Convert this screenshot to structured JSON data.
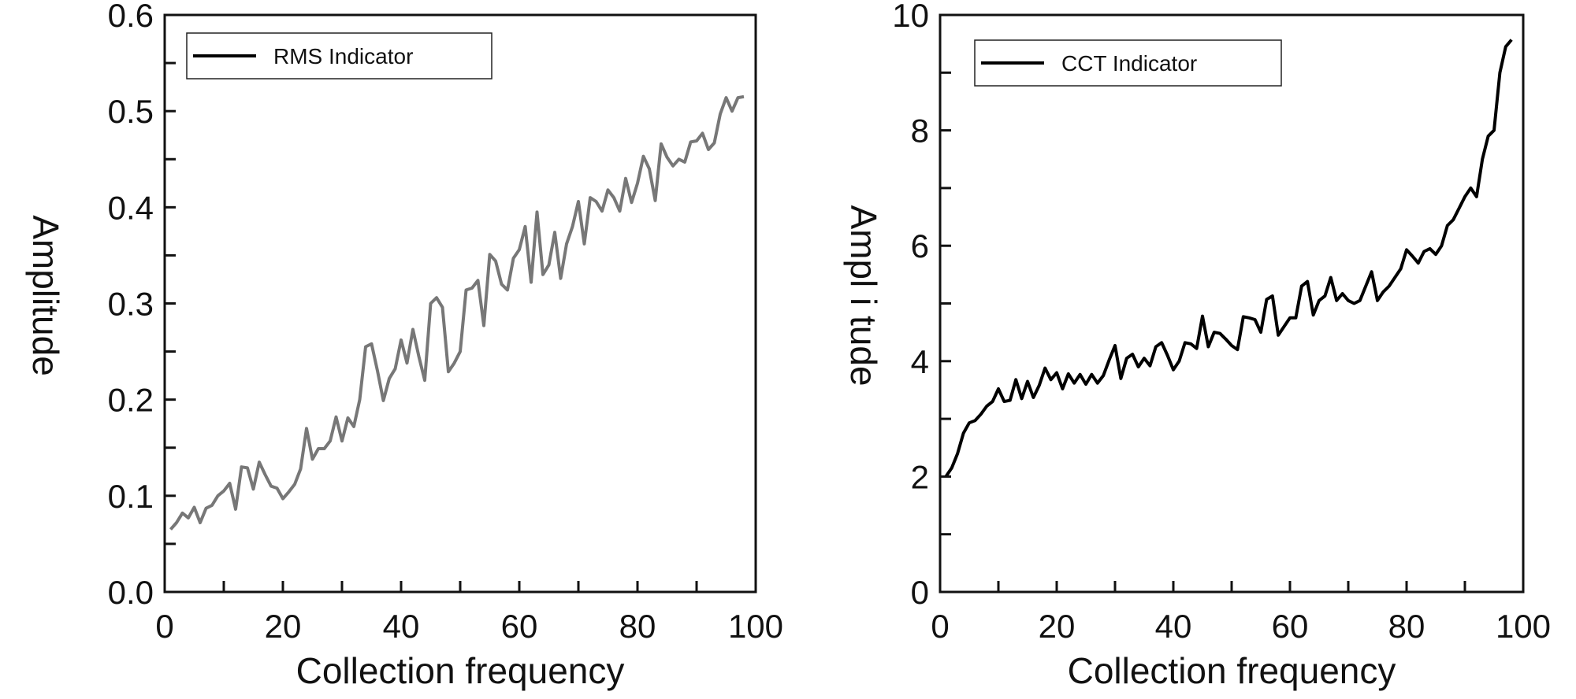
{
  "chart_data": [
    {
      "type": "line",
      "xlabel": "Collection frequency",
      "ylabel": "Amplitude",
      "xlim": [
        0,
        100
      ],
      "ylim": [
        0,
        0.6
      ],
      "xticks": [
        "0",
        "20",
        "40",
        "60",
        "80",
        "100"
      ],
      "yticks": [
        "0.0",
        "0.1",
        "0.2",
        "0.3",
        "0.4",
        "0.5",
        "0.6"
      ],
      "xtick_values": [
        0,
        20,
        40,
        60,
        80,
        100
      ],
      "ytick_values": [
        0,
        0.1,
        0.2,
        0.3,
        0.4,
        0.5,
        0.6
      ],
      "grid": false,
      "legend_position": "top-left",
      "series": [
        {
          "name": "RMS Indicator",
          "color": "#777777",
          "x_start": 1,
          "values": [
            0.065,
            0.072,
            0.082,
            0.077,
            0.088,
            0.072,
            0.087,
            0.09,
            0.1,
            0.105,
            0.113,
            0.086,
            0.13,
            0.129,
            0.107,
            0.135,
            0.122,
            0.11,
            0.108,
            0.097,
            0.104,
            0.112,
            0.128,
            0.17,
            0.138,
            0.149,
            0.149,
            0.157,
            0.182,
            0.157,
            0.181,
            0.172,
            0.2,
            0.255,
            0.258,
            0.23,
            0.199,
            0.222,
            0.232,
            0.262,
            0.238,
            0.273,
            0.245,
            0.22,
            0.3,
            0.306,
            0.296,
            0.229,
            0.238,
            0.25,
            0.314,
            0.316,
            0.324,
            0.277,
            0.351,
            0.344,
            0.32,
            0.314,
            0.347,
            0.356,
            0.38,
            0.322,
            0.395,
            0.33,
            0.34,
            0.374,
            0.326,
            0.362,
            0.38,
            0.406,
            0.362,
            0.41,
            0.406,
            0.396,
            0.418,
            0.41,
            0.396,
            0.43,
            0.405,
            0.425,
            0.453,
            0.44,
            0.407,
            0.466,
            0.452,
            0.443,
            0.45,
            0.447,
            0.468,
            0.469,
            0.477,
            0.46,
            0.467,
            0.497,
            0.514,
            0.5,
            0.514,
            0.515
          ]
        }
      ]
    },
    {
      "type": "line",
      "xlabel": "Collection frequency",
      "ylabel": "Ampl i tude",
      "xlim": [
        0,
        100
      ],
      "ylim": [
        0,
        10
      ],
      "xticks": [
        "0",
        "20",
        "40",
        "60",
        "80",
        "100"
      ],
      "yticks": [
        "0",
        "2",
        "4",
        "6",
        "8",
        "10"
      ],
      "xtick_values": [
        0,
        20,
        40,
        60,
        80,
        100
      ],
      "ytick_values": [
        0,
        2,
        4,
        6,
        8,
        10
      ],
      "grid": false,
      "legend_position": "top-left",
      "series": [
        {
          "name": "CCT Indicator",
          "color": "#000000",
          "x_start": 1,
          "values": [
            2.0,
            2.15,
            2.4,
            2.75,
            2.93,
            2.97,
            3.08,
            3.22,
            3.3,
            3.52,
            3.3,
            3.32,
            3.68,
            3.35,
            3.65,
            3.37,
            3.58,
            3.88,
            3.68,
            3.8,
            3.52,
            3.78,
            3.62,
            3.77,
            3.6,
            3.77,
            3.62,
            3.75,
            4.02,
            4.27,
            3.7,
            4.05,
            4.12,
            3.9,
            4.05,
            3.92,
            4.25,
            4.32,
            4.1,
            3.85,
            4.0,
            4.32,
            4.3,
            4.22,
            4.78,
            4.25,
            4.5,
            4.48,
            4.38,
            4.27,
            4.2,
            4.77,
            4.75,
            4.72,
            4.5,
            5.07,
            5.13,
            4.45,
            4.6,
            4.75,
            4.75,
            5.3,
            5.38,
            4.8,
            5.05,
            5.13,
            5.45,
            5.05,
            5.17,
            5.05,
            5.0,
            5.05,
            5.3,
            5.55,
            5.05,
            5.2,
            5.3,
            5.45,
            5.6,
            5.93,
            5.82,
            5.7,
            5.9,
            5.95,
            5.85,
            6.0,
            6.35,
            6.45,
            6.65,
            6.85,
            7.0,
            6.85,
            7.5,
            7.9,
            8.0,
            9.0,
            9.45,
            9.57
          ]
        }
      ]
    }
  ]
}
